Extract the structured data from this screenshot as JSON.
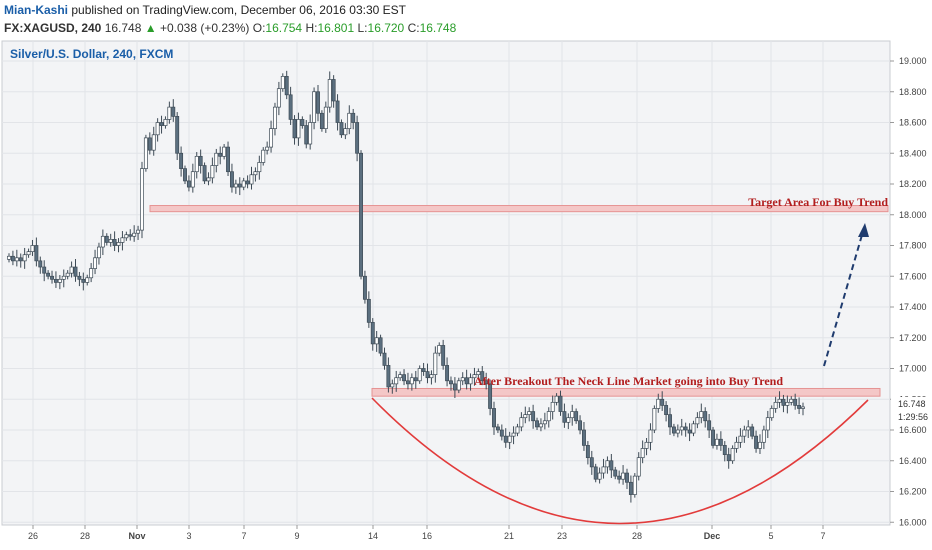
{
  "header": {
    "author": "Mian-Kashi",
    "published": "published on TradingView.com, December 06, 2016 03:30 EST",
    "symbol": "FX:XAGUSD, 240",
    "last": "16.748",
    "arrow": "▲",
    "change": "+0.038 (+0.23%)",
    "open_label": "O:",
    "open": "16.754",
    "high_label": "H:",
    "high": "16.801",
    "low_label": "L:",
    "low": "16.720",
    "close_label": "C:",
    "close": "16.748"
  },
  "colors": {
    "bull_candle": "#ffffff",
    "bear_candle": "#5b6f7f",
    "wick": "#3d4a55",
    "zone": "#f4c7c7",
    "zone_border": "#e59393",
    "curve": "#e23b3b",
    "arrow": "#1f3b6e",
    "annotation": "#b21e1e",
    "plot_bg": "#f3f4f6",
    "grid": "#e2e4e8"
  },
  "chart_data": {
    "type": "candlestick",
    "title": "Silver/U.S. Dollar, 240, FXCM",
    "y_ticks": [
      "19.000",
      "18.800",
      "18.600",
      "18.400",
      "18.200",
      "18.000",
      "17.800",
      "17.600",
      "17.400",
      "17.200",
      "17.000",
      "16.800",
      "16.600",
      "16.400",
      "16.200",
      "16.000"
    ],
    "ylim": [
      15.95,
      19.1
    ],
    "x_ticks": [
      "26",
      "28",
      "Nov",
      "3",
      "7",
      "9",
      "14",
      "16",
      "21",
      "23",
      "28",
      "Dec",
      "5",
      "7"
    ],
    "price_label": "16.748",
    "countdown_label": "1:29:56",
    "grid": true,
    "zones": [
      {
        "label": "Target Area For Buy Trend",
        "from": 18.02,
        "to": 18.06
      },
      {
        "label": "After Breakout The Neck Line Market going into Buy Trend",
        "from": 16.82,
        "to": 16.87
      }
    ],
    "closes": [
      17.73,
      17.7,
      17.72,
      17.7,
      17.74,
      17.76,
      17.8,
      17.7,
      17.66,
      17.62,
      17.6,
      17.58,
      17.56,
      17.58,
      17.6,
      17.62,
      17.66,
      17.6,
      17.58,
      17.56,
      17.59,
      17.65,
      17.72,
      17.79,
      17.86,
      17.82,
      17.84,
      17.8,
      17.82,
      17.85,
      17.87,
      17.86,
      17.88,
      17.9,
      18.3,
      18.5,
      18.42,
      18.52,
      18.6,
      18.58,
      18.62,
      18.7,
      18.64,
      18.4,
      18.3,
      18.22,
      18.18,
      18.28,
      18.38,
      18.32,
      18.22,
      18.24,
      18.32,
      18.4,
      18.38,
      18.44,
      18.28,
      18.18,
      18.2,
      18.18,
      18.22,
      18.2,
      18.26,
      18.28,
      18.34,
      18.42,
      18.44,
      18.56,
      18.7,
      18.82,
      18.9,
      18.78,
      18.62,
      18.5,
      18.62,
      18.58,
      18.46,
      18.6,
      18.8,
      18.66,
      18.56,
      18.7,
      18.88,
      18.74,
      18.6,
      18.52,
      18.56,
      18.66,
      18.6,
      18.4,
      17.6,
      17.45,
      17.3,
      17.16,
      17.2,
      17.1,
      17.02,
      16.88,
      16.9,
      16.94,
      16.96,
      16.92,
      16.9,
      16.94,
      16.92,
      17.0,
      16.98,
      16.94,
      16.96,
      17.1,
      17.15,
      17.02,
      16.92,
      16.9,
      16.86,
      16.92,
      16.94,
      16.9,
      16.94,
      16.96,
      16.98,
      16.92,
      16.9,
      16.74,
      16.62,
      16.6,
      16.56,
      16.52,
      16.56,
      16.58,
      16.62,
      16.68,
      16.7,
      16.72,
      16.66,
      16.62,
      16.64,
      16.66,
      16.72,
      16.78,
      16.82,
      16.72,
      16.65,
      16.68,
      16.72,
      16.66,
      16.6,
      16.5,
      16.42,
      16.36,
      16.28,
      16.32,
      16.36,
      16.4,
      16.34,
      16.3,
      16.28,
      16.32,
      16.26,
      16.18,
      16.3,
      16.42,
      16.48,
      16.52,
      16.6,
      16.74,
      16.8,
      16.76,
      16.7,
      16.62,
      16.58,
      16.6,
      16.62,
      16.6,
      16.58,
      16.64,
      16.68,
      16.72,
      16.66,
      16.6,
      16.5,
      16.54,
      16.5,
      16.44,
      16.4,
      16.48,
      16.52,
      16.56,
      16.6,
      16.62,
      16.56,
      16.48,
      16.52,
      16.6,
      16.68,
      16.74,
      16.78,
      16.8,
      16.76,
      16.78,
      16.8,
      16.76,
      16.74,
      16.75
    ]
  }
}
